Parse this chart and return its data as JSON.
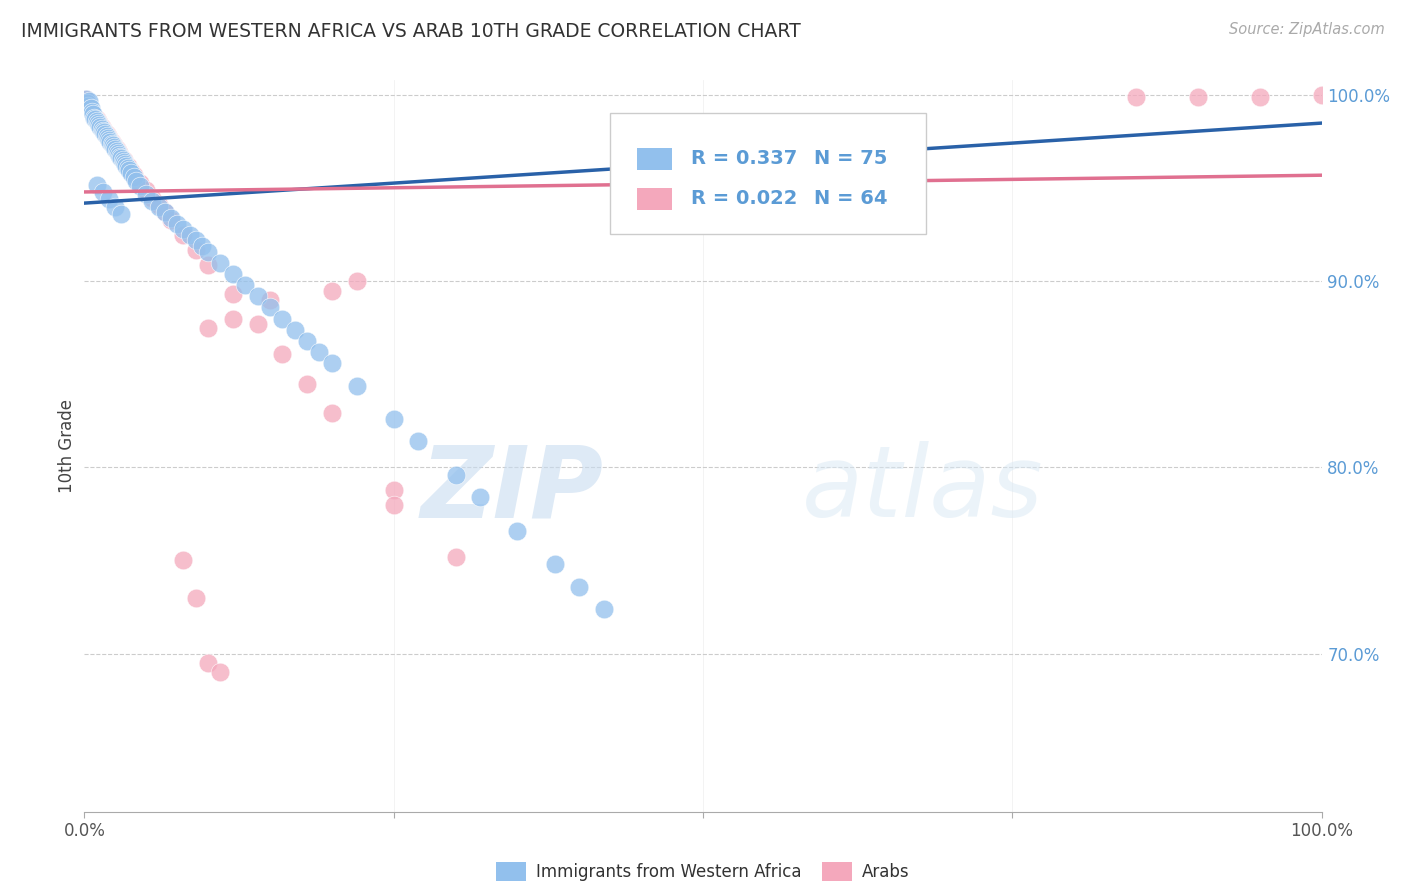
{
  "title": "IMMIGRANTS FROM WESTERN AFRICA VS ARAB 10TH GRADE CORRELATION CHART",
  "source": "Source: ZipAtlas.com",
  "ylabel": "10th Grade",
  "right_yticks": [
    "100.0%",
    "90.0%",
    "80.0%",
    "70.0%"
  ],
  "right_ytick_vals": [
    1.0,
    0.9,
    0.8,
    0.7
  ],
  "legend_blue_label": "Immigrants from Western Africa",
  "legend_pink_label": "Arabs",
  "legend_blue_R": "R = 0.337",
  "legend_blue_N": "N = 75",
  "legend_pink_R": "R = 0.022",
  "legend_pink_N": "N = 64",
  "blue_color": "#92C0ED",
  "pink_color": "#F4A8BC",
  "blue_line_color": "#2961A8",
  "pink_line_color": "#E07090",
  "watermark_zip": "ZIP",
  "watermark_atlas": "atlas",
  "xmin": 0.0,
  "xmax": 1.0,
  "ymin": 0.615,
  "ymax": 1.008,
  "blue_scatter_x": [
    0.001,
    0.002,
    0.003,
    0.004,
    0.005,
    0.006,
    0.007,
    0.008,
    0.009,
    0.01,
    0.011,
    0.012,
    0.013,
    0.014,
    0.015,
    0.016,
    0.017,
    0.018,
    0.019,
    0.02,
    0.021,
    0.022,
    0.023,
    0.024,
    0.025,
    0.026,
    0.027,
    0.028,
    0.029,
    0.03,
    0.031,
    0.032,
    0.033,
    0.034,
    0.035,
    0.036,
    0.038,
    0.04,
    0.042,
    0.045,
    0.05,
    0.055,
    0.06,
    0.065,
    0.07,
    0.075,
    0.08,
    0.085,
    0.09,
    0.095,
    0.1,
    0.11,
    0.12,
    0.13,
    0.14,
    0.15,
    0.16,
    0.17,
    0.18,
    0.19,
    0.2,
    0.22,
    0.25,
    0.27,
    0.3,
    0.32,
    0.35,
    0.38,
    0.4,
    0.42,
    0.01,
    0.015,
    0.02,
    0.025,
    0.03
  ],
  "blue_scatter_y": [
    0.998,
    0.996,
    0.994,
    0.997,
    0.993,
    0.991,
    0.99,
    0.988,
    0.987,
    0.986,
    0.985,
    0.984,
    0.983,
    0.982,
    0.981,
    0.98,
    0.979,
    0.978,
    0.977,
    0.976,
    0.975,
    0.974,
    0.973,
    0.972,
    0.971,
    0.97,
    0.969,
    0.968,
    0.967,
    0.966,
    0.965,
    0.964,
    0.963,
    0.962,
    0.961,
    0.96,
    0.958,
    0.956,
    0.954,
    0.951,
    0.947,
    0.943,
    0.94,
    0.937,
    0.934,
    0.931,
    0.928,
    0.925,
    0.922,
    0.919,
    0.916,
    0.91,
    0.904,
    0.898,
    0.892,
    0.886,
    0.88,
    0.874,
    0.868,
    0.862,
    0.856,
    0.844,
    0.826,
    0.814,
    0.796,
    0.784,
    0.766,
    0.748,
    0.736,
    0.724,
    0.952,
    0.948,
    0.944,
    0.94,
    0.936
  ],
  "pink_scatter_x": [
    0.001,
    0.002,
    0.003,
    0.004,
    0.005,
    0.006,
    0.007,
    0.008,
    0.009,
    0.01,
    0.011,
    0.012,
    0.013,
    0.014,
    0.015,
    0.016,
    0.017,
    0.018,
    0.019,
    0.02,
    0.021,
    0.022,
    0.023,
    0.024,
    0.025,
    0.026,
    0.027,
    0.028,
    0.03,
    0.032,
    0.035,
    0.038,
    0.04,
    0.045,
    0.05,
    0.055,
    0.06,
    0.065,
    0.07,
    0.08,
    0.09,
    0.1,
    0.12,
    0.14,
    0.16,
    0.18,
    0.2,
    0.25,
    0.3,
    0.55,
    0.85,
    0.9,
    0.95,
    1.0,
    0.1,
    0.12,
    0.15,
    0.2,
    0.22,
    0.25,
    0.08,
    0.09,
    0.1,
    0.11
  ],
  "pink_scatter_y": [
    0.998,
    0.996,
    0.994,
    0.993,
    0.992,
    0.991,
    0.99,
    0.989,
    0.988,
    0.987,
    0.986,
    0.985,
    0.984,
    0.983,
    0.982,
    0.981,
    0.98,
    0.979,
    0.978,
    0.977,
    0.976,
    0.975,
    0.974,
    0.973,
    0.972,
    0.971,
    0.97,
    0.969,
    0.967,
    0.965,
    0.962,
    0.959,
    0.957,
    0.953,
    0.949,
    0.945,
    0.941,
    0.937,
    0.933,
    0.925,
    0.917,
    0.909,
    0.893,
    0.877,
    0.861,
    0.845,
    0.829,
    0.788,
    0.752,
    0.96,
    0.999,
    0.999,
    0.999,
    1.0,
    0.875,
    0.88,
    0.89,
    0.895,
    0.9,
    0.78,
    0.75,
    0.73,
    0.695,
    0.69
  ],
  "blue_line_y_start": 0.942,
  "blue_line_y_end": 0.985,
  "pink_line_y_start": 0.948,
  "pink_line_y_end": 0.957
}
